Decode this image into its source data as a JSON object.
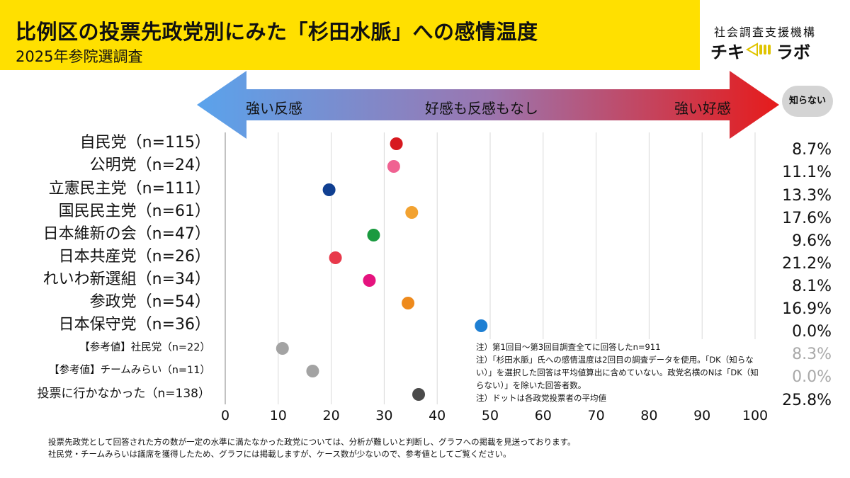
{
  "header": {
    "title": "比例区の投票先政党別にみた「杉田水脈」への感情温度",
    "subtitle": "2025年参院選調査",
    "org": "社会調査支援機構",
    "logo_left": "チキ",
    "logo_right": "ラボ",
    "brand_color": "#ffe000"
  },
  "scale": {
    "left_label": "強い反感",
    "middle_label": "好感も反感もなし",
    "right_label": "強い好感",
    "dk_badge": "知らない"
  },
  "chart_data": {
    "type": "scatter",
    "xlim": [
      0,
      100
    ],
    "x_ticks": [
      "0",
      "10",
      "20",
      "30",
      "40",
      "50",
      "60",
      "70",
      "80",
      "90",
      "100"
    ],
    "grid": true,
    "rows": [
      {
        "label": "自民党（n=115）",
        "value": 32.3,
        "dk": "8.7%",
        "color": "#d7191f",
        "style": "big",
        "reference": false
      },
      {
        "label": "公明党（n=24）",
        "value": 31.8,
        "dk": "11.1%",
        "color": "#f06292",
        "style": "big",
        "reference": false
      },
      {
        "label": "立憲民主党（n=111）",
        "value": 19.6,
        "dk": "13.3%",
        "color": "#103f91",
        "style": "big",
        "reference": false
      },
      {
        "label": "国民民主党（n=61）",
        "value": 35.2,
        "dk": "17.6%",
        "color": "#f2a231",
        "style": "big",
        "reference": false
      },
      {
        "label": "日本維新の会（n=47）",
        "value": 28.0,
        "dk": "9.6%",
        "color": "#1a9a3f",
        "style": "big",
        "reference": false
      },
      {
        "label": "日本共産党（n=26）",
        "value": 20.8,
        "dk": "21.2%",
        "color": "#e8394b",
        "style": "big",
        "reference": false
      },
      {
        "label": "れいわ新選組（n=34）",
        "value": 27.2,
        "dk": "8.1%",
        "color": "#e5137e",
        "style": "big",
        "reference": false
      },
      {
        "label": "参政党（n=54）",
        "value": 34.5,
        "dk": "16.9%",
        "color": "#ee8a1c",
        "style": "big",
        "reference": false
      },
      {
        "label": "日本保守党（n=36）",
        "value": 48.3,
        "dk": "0.0%",
        "color": "#1e7fd3",
        "style": "big",
        "reference": false
      },
      {
        "label": "【参考値】社民党（n=22）",
        "value": 10.8,
        "dk": "8.3%",
        "color": "#a3a3a3",
        "style": "small",
        "reference": true
      },
      {
        "label": "【参考値】チームみらい（n=11）",
        "value": 16.5,
        "dk": "0.0%",
        "color": "#a3a3a3",
        "style": "small",
        "reference": true
      },
      {
        "label": "投票に行かなかった（n=138）",
        "value": 36.5,
        "dk": "25.8%",
        "color": "#4a4a4a",
        "style": "mid",
        "reference": false
      }
    ]
  },
  "notes": [
    "注）第1回目～第3回目調査全てに回答したn=911",
    "注）「杉田水脈」氏への感情温度は2回目の調査データを使用。「DK（知らない）」を選択した回答は平均値算出に含めていない。政党名横のNは「DK（知らない）」を除いた回答者数。",
    "注）ドットは各政党投票者の平均値"
  ],
  "footer": [
    "投票先政党として回答された方の数が一定の水準に満たなかった政党については、分析が難しいと判断し、グラフへの掲載を見送っております。",
    "社民党・チームみらいは議席を獲得したため、グラフには掲載しますが、ケース数が少ないので、参考値としてご覧ください。"
  ]
}
